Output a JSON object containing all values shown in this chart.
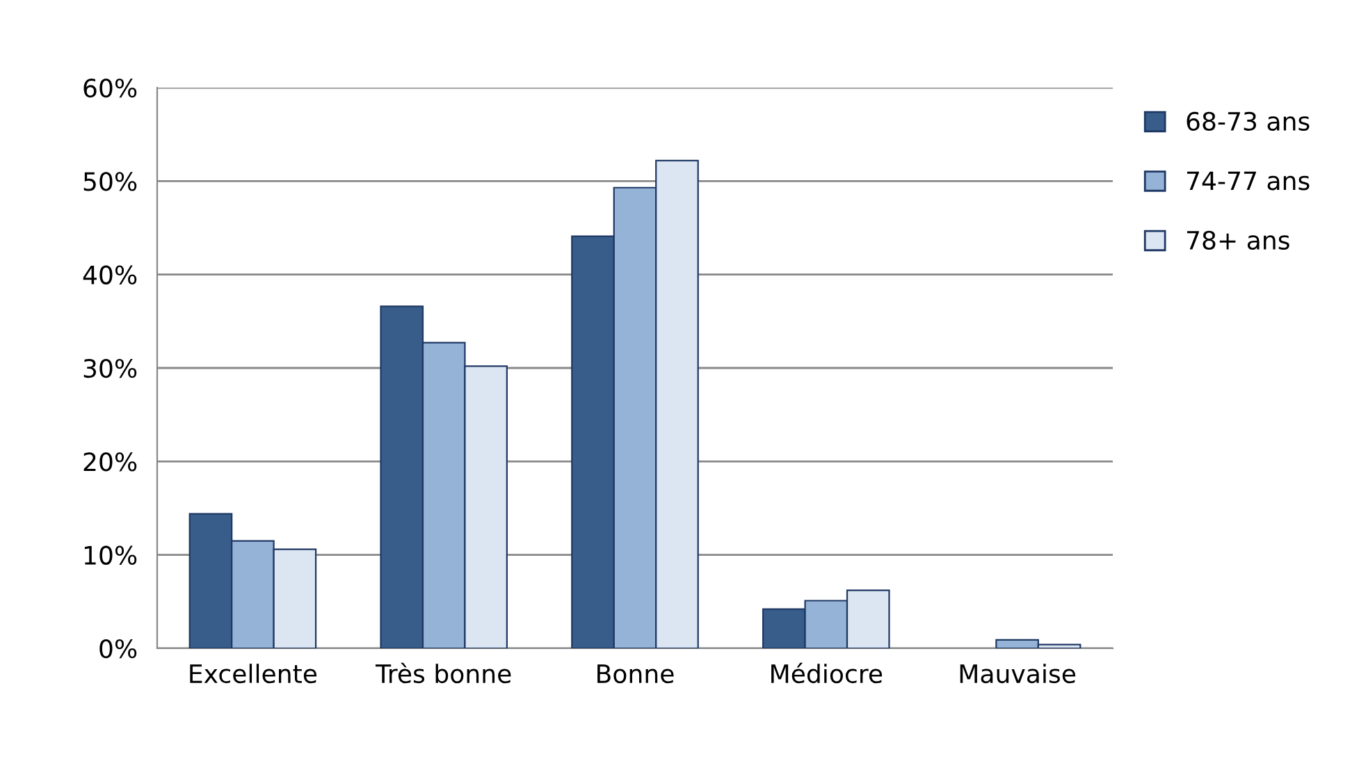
{
  "chart_data": {
    "type": "bar",
    "categories": [
      "Excellente",
      "Très bonne",
      "Bonne",
      "Médiocre",
      "Mauvaise"
    ],
    "series": [
      {
        "name": "68-73 ans",
        "color": "#385d8a",
        "values": [
          14.4,
          36.6,
          44.1,
          4.2,
          null
        ]
      },
      {
        "name": "74-77 ans",
        "color": "#95b3d7",
        "values": [
          11.5,
          32.7,
          49.3,
          5.1,
          0.9
        ]
      },
      {
        "name": "78+ ans",
        "color": "#dce6f2",
        "values": [
          10.6,
          30.2,
          52.2,
          6.2,
          0.4
        ]
      }
    ],
    "ylim": [
      0,
      60
    ],
    "yticks": [
      {
        "value": 0,
        "label": "0%"
      },
      {
        "value": 10,
        "label": "10%"
      },
      {
        "value": 20,
        "label": "20%"
      },
      {
        "value": 30,
        "label": "30%"
      },
      {
        "value": 40,
        "label": "40%"
      },
      {
        "value": 50,
        "label": "50%"
      },
      {
        "value": 60,
        "label": "60%"
      }
    ],
    "grid": "y",
    "legend": "right"
  }
}
